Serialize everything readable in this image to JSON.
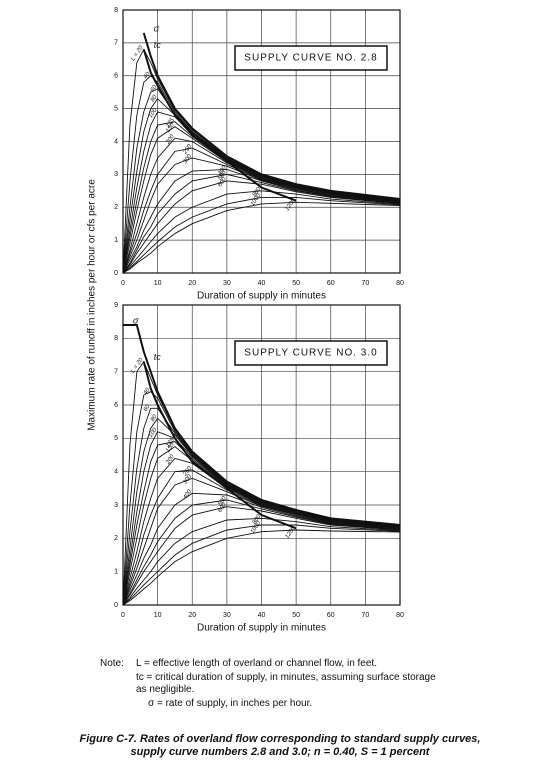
{
  "y_label": "Maximum rate of runoff in inches per hour or cfs per acre",
  "chart_data": [
    {
      "type": "line",
      "title": "SUPPLY CURVE NO. 2.8",
      "x_label": "Duration of supply in minutes",
      "color": "#111111",
      "grid": true,
      "xlim": [
        0,
        80
      ],
      "xticks": [
        0,
        10,
        20,
        30,
        40,
        50,
        60,
        70,
        80
      ],
      "ylim": [
        0,
        8
      ],
      "yticks": [
        0,
        1,
        2,
        3,
        4,
        5,
        6,
        7,
        8
      ],
      "x": [
        0,
        2,
        4,
        6,
        8,
        10,
        15,
        20,
        30,
        40,
        50,
        60,
        80
      ],
      "series": [
        {
          "name": "σ",
          "line_width": 2,
          "values": [
            null,
            null,
            null,
            7.3,
            6.6,
            6.0,
            5.0,
            4.4,
            3.55,
            3.0,
            2.7,
            2.5,
            2.25
          ]
        },
        {
          "name": "tc",
          "line_width": 2,
          "values": [
            null,
            null,
            null,
            6.8,
            6.1,
            5.7,
            4.8,
            4.2,
            3.4,
            2.6,
            2.2,
            null,
            null
          ]
        },
        {
          "name": "L = 20",
          "values": [
            0,
            4.5,
            6.4,
            6.8,
            6.4,
            5.9,
            4.95,
            4.35,
            3.5,
            2.98,
            2.68,
            2.48,
            2.24
          ]
        },
        {
          "name": "40",
          "values": [
            0,
            2.8,
            4.8,
            5.8,
            6.0,
            5.8,
            4.9,
            4.3,
            3.48,
            2.96,
            2.67,
            2.47,
            2.23
          ]
        },
        {
          "name": "60",
          "values": [
            0,
            2.0,
            3.8,
            4.9,
            5.5,
            5.6,
            4.85,
            4.28,
            3.46,
            2.95,
            2.66,
            2.46,
            2.22
          ]
        },
        {
          "name": "80",
          "values": [
            0,
            1.6,
            3.1,
            4.3,
            5.0,
            5.3,
            4.8,
            4.25,
            3.44,
            2.94,
            2.65,
            2.45,
            2.21
          ]
        },
        {
          "name": "100",
          "values": [
            0,
            1.3,
            2.6,
            3.7,
            4.5,
            4.9,
            4.75,
            4.2,
            3.42,
            2.92,
            2.64,
            2.44,
            2.2
          ]
        },
        {
          "name": "125",
          "values": [
            0,
            1.1,
            2.2,
            3.2,
            4.0,
            4.5,
            4.6,
            4.15,
            3.4,
            2.9,
            2.62,
            2.43,
            2.19
          ]
        },
        {
          "name": "150",
          "values": [
            0,
            0.9,
            1.9,
            2.8,
            3.6,
            4.1,
            4.45,
            4.1,
            3.38,
            2.88,
            2.61,
            2.42,
            2.18
          ]
        },
        {
          "name": "200",
          "values": [
            0,
            0.7,
            1.5,
            2.3,
            3.0,
            3.5,
            4.1,
            4.0,
            3.35,
            2.86,
            2.59,
            2.4,
            2.17
          ]
        },
        {
          "name": "250",
          "values": [
            0,
            0.6,
            1.2,
            1.9,
            2.5,
            3.0,
            3.7,
            3.8,
            3.3,
            2.84,
            2.57,
            2.38,
            2.16
          ]
        },
        {
          "name": "300",
          "values": [
            0,
            0.5,
            1.0,
            1.6,
            2.2,
            2.7,
            3.3,
            3.5,
            3.25,
            2.82,
            2.55,
            2.36,
            2.15
          ]
        },
        {
          "name": "400",
          "values": [
            0,
            0.4,
            0.8,
            1.3,
            1.7,
            2.1,
            2.8,
            3.1,
            3.15,
            2.8,
            2.52,
            2.34,
            2.13
          ]
        },
        {
          "name": "500",
          "values": [
            0,
            0.3,
            0.7,
            1.1,
            1.4,
            1.8,
            2.4,
            2.8,
            3.0,
            2.75,
            2.5,
            2.32,
            2.12
          ]
        },
        {
          "name": "600",
          "values": [
            0,
            0.25,
            0.6,
            0.9,
            1.2,
            1.5,
            2.1,
            2.5,
            2.8,
            2.7,
            2.47,
            2.3,
            2.11
          ]
        },
        {
          "name": "800",
          "values": [
            0,
            0.2,
            0.45,
            0.7,
            0.95,
            1.2,
            1.7,
            2.0,
            2.4,
            2.5,
            2.4,
            2.25,
            2.09
          ]
        },
        {
          "name": "1000",
          "values": [
            0,
            0.15,
            0.35,
            0.55,
            0.75,
            0.95,
            1.4,
            1.7,
            2.1,
            2.3,
            2.3,
            2.2,
            2.07
          ]
        },
        {
          "name": "1200",
          "values": [
            0,
            0.12,
            0.3,
            0.45,
            0.6,
            0.8,
            1.2,
            1.5,
            1.9,
            2.1,
            2.15,
            2.12,
            2.05
          ]
        }
      ]
    },
    {
      "type": "line",
      "title": "SUPPLY CURVE NO. 3.0",
      "x_label": "Duration of supply in minutes",
      "color": "#111111",
      "grid": true,
      "xlim": [
        0,
        80
      ],
      "xticks": [
        0,
        10,
        20,
        30,
        40,
        50,
        60,
        70,
        80
      ],
      "ylim": [
        0,
        9
      ],
      "yticks": [
        0,
        1,
        2,
        3,
        4,
        5,
        6,
        7,
        8,
        9
      ],
      "x": [
        0,
        2,
        4,
        6,
        8,
        10,
        15,
        20,
        30,
        40,
        50,
        60,
        80
      ],
      "series": [
        {
          "name": "σ",
          "line_width": 2,
          "values": [
            8.4,
            8.4,
            8.4,
            7.6,
            7.0,
            6.4,
            5.3,
            4.6,
            3.7,
            3.15,
            2.85,
            2.6,
            2.4
          ]
        },
        {
          "name": "tc",
          "line_width": 2,
          "values": [
            null,
            null,
            null,
            7.3,
            6.5,
            6.0,
            5.0,
            4.3,
            3.5,
            2.7,
            2.3,
            null,
            null
          ]
        },
        {
          "name": "L = 20",
          "values": [
            0,
            4.8,
            7.0,
            7.3,
            6.8,
            6.3,
            5.25,
            4.55,
            3.65,
            3.12,
            2.83,
            2.58,
            2.38
          ]
        },
        {
          "name": "40",
          "values": [
            0,
            3.0,
            5.2,
            6.3,
            6.4,
            6.2,
            5.2,
            4.52,
            3.63,
            3.1,
            2.82,
            2.57,
            2.37
          ]
        },
        {
          "name": "60",
          "values": [
            0,
            2.2,
            4.1,
            5.3,
            5.9,
            5.9,
            5.15,
            4.5,
            3.61,
            3.09,
            2.81,
            2.56,
            2.36
          ]
        },
        {
          "name": "80",
          "values": [
            0,
            1.7,
            3.4,
            4.6,
            5.3,
            5.6,
            5.1,
            4.47,
            3.59,
            3.08,
            2.8,
            2.55,
            2.35
          ]
        },
        {
          "name": "100",
          "values": [
            0,
            1.4,
            2.8,
            4.0,
            4.8,
            5.2,
            5.0,
            4.43,
            3.57,
            3.06,
            2.79,
            2.54,
            2.34
          ]
        },
        {
          "name": "125",
          "values": [
            0,
            1.2,
            2.4,
            3.4,
            4.3,
            4.8,
            4.9,
            4.38,
            3.55,
            3.04,
            2.77,
            2.53,
            2.33
          ]
        },
        {
          "name": "150",
          "values": [
            0,
            1.0,
            2.0,
            3.0,
            3.8,
            4.4,
            4.75,
            4.33,
            3.53,
            3.02,
            2.76,
            2.52,
            2.32
          ]
        },
        {
          "name": "200",
          "values": [
            0,
            0.8,
            1.6,
            2.5,
            3.2,
            3.8,
            4.4,
            4.25,
            3.5,
            3.0,
            2.74,
            2.5,
            2.31
          ]
        },
        {
          "name": "250",
          "values": [
            0,
            0.65,
            1.3,
            2.1,
            2.7,
            3.2,
            4.0,
            4.05,
            3.45,
            2.98,
            2.72,
            2.48,
            2.3
          ]
        },
        {
          "name": "300",
          "values": [
            0,
            0.55,
            1.1,
            1.7,
            2.3,
            2.9,
            3.6,
            3.8,
            3.4,
            2.96,
            2.7,
            2.46,
            2.29
          ]
        },
        {
          "name": "400",
          "values": [
            0,
            0.45,
            0.9,
            1.4,
            1.8,
            2.3,
            3.0,
            3.35,
            3.3,
            2.93,
            2.67,
            2.44,
            2.27
          ]
        },
        {
          "name": "500",
          "values": [
            0,
            0.35,
            0.75,
            1.15,
            1.5,
            1.9,
            2.6,
            3.0,
            3.15,
            2.88,
            2.64,
            2.42,
            2.26
          ]
        },
        {
          "name": "600",
          "values": [
            0,
            0.3,
            0.65,
            1.0,
            1.3,
            1.6,
            2.3,
            2.7,
            2.95,
            2.82,
            2.6,
            2.4,
            2.25
          ]
        },
        {
          "name": "800",
          "values": [
            0,
            0.22,
            0.5,
            0.75,
            1.0,
            1.3,
            1.85,
            2.2,
            2.55,
            2.6,
            2.5,
            2.35,
            2.23
          ]
        },
        {
          "name": "1000",
          "values": [
            0,
            0.17,
            0.38,
            0.6,
            0.8,
            1.0,
            1.5,
            1.85,
            2.25,
            2.4,
            2.4,
            2.3,
            2.21
          ]
        },
        {
          "name": "1200",
          "values": [
            0,
            0.13,
            0.3,
            0.48,
            0.65,
            0.85,
            1.3,
            1.6,
            2.0,
            2.2,
            2.25,
            2.22,
            2.19
          ]
        }
      ]
    }
  ],
  "note": {
    "label": "Note:",
    "lines": [
      "L = effective length of overland or channel flow, in feet.",
      "tc = critical duration of supply, in minutes, assuming surface storage as negligible.",
      "σ = rate of supply, in inches per hour."
    ]
  },
  "caption": "Figure C-7.  Rates of overland flow corresponding to standard supply curves, supply curve numbers 2.8 and 3.0; n = 0.40, S = 1 percent"
}
